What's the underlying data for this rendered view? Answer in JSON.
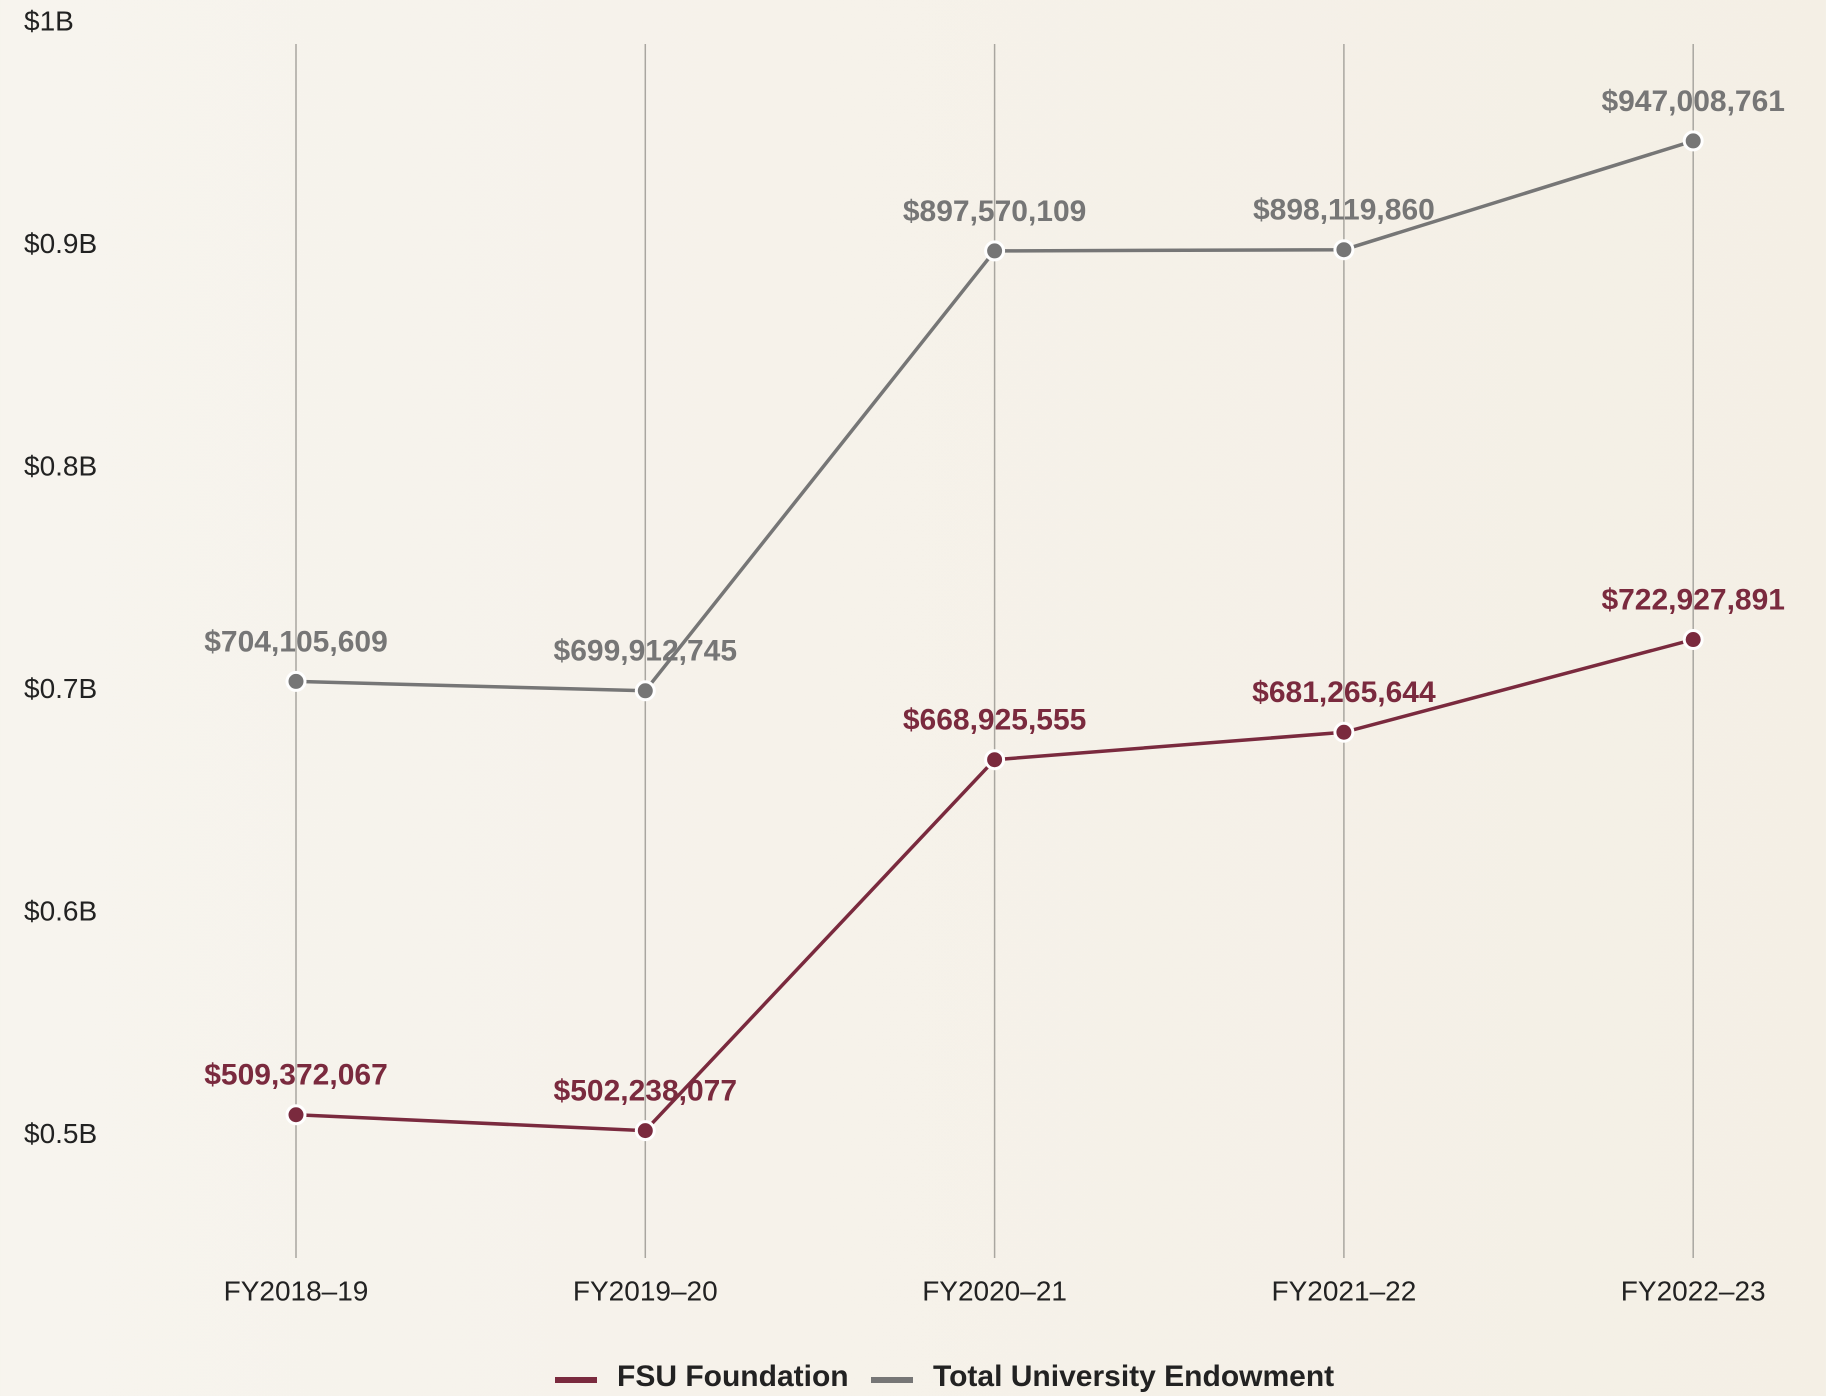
{
  "chart_data": {
    "type": "line",
    "categories": [
      "FY2018–19",
      "FY2019–20",
      "FY2020–21",
      "FY2021–22",
      "FY2022–23"
    ],
    "series": [
      {
        "name": "FSU Foundation",
        "color": "#7a2a3e",
        "values": [
          509372067,
          502238077,
          668925555,
          681265644,
          722927891
        ],
        "value_labels": [
          "$509,372,067",
          "$502,238,077",
          "$668,925,555",
          "$681,265,644",
          "$722,927,891"
        ]
      },
      {
        "name": "Total University Endowment",
        "color": "#767676",
        "values": [
          704105609,
          699912745,
          897570109,
          898119860,
          947008761
        ],
        "value_labels": [
          "$704,105,609",
          "$699,912,745",
          "$897,570,109",
          "$898,119,860",
          "$947,008,761"
        ]
      }
    ],
    "ylim": [
      445000000,
      1000000000
    ],
    "yticks": [
      {
        "value": 500000000,
        "label": "$0.5B"
      },
      {
        "value": 600000000,
        "label": "$0.6B"
      },
      {
        "value": 700000000,
        "label": "$0.7B"
      },
      {
        "value": 800000000,
        "label": "$0.8B"
      },
      {
        "value": 900000000,
        "label": "$0.9B"
      },
      {
        "value": 1000000000,
        "label": "$1B"
      }
    ],
    "grid": false,
    "legend": "bottom"
  }
}
